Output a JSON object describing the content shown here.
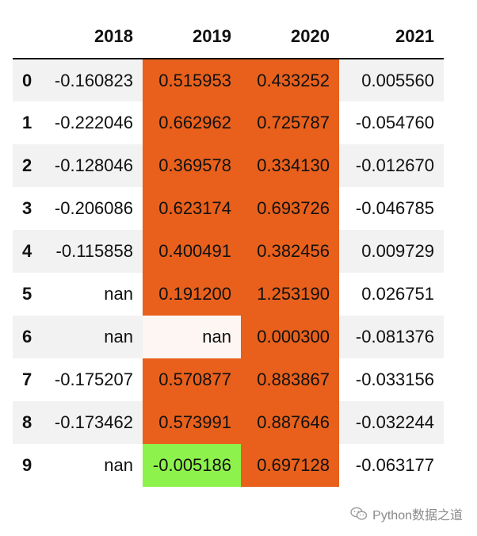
{
  "table": {
    "columns": [
      "",
      "2018",
      "2019",
      "2020",
      "2021"
    ],
    "rows": [
      {
        "index": "0",
        "cells": [
          "-0.160823",
          "0.515953",
          "0.433252",
          "0.005560"
        ],
        "highlight": [
          "",
          "orange",
          "orange",
          ""
        ]
      },
      {
        "index": "1",
        "cells": [
          "-0.222046",
          "0.662962",
          "0.725787",
          "-0.054760"
        ],
        "highlight": [
          "",
          "orange",
          "orange",
          ""
        ]
      },
      {
        "index": "2",
        "cells": [
          "-0.128046",
          "0.369578",
          "0.334130",
          "-0.012670"
        ],
        "highlight": [
          "",
          "orange",
          "orange",
          ""
        ]
      },
      {
        "index": "3",
        "cells": [
          "-0.206086",
          "0.623174",
          "0.693726",
          "-0.046785"
        ],
        "highlight": [
          "",
          "orange",
          "orange",
          ""
        ]
      },
      {
        "index": "4",
        "cells": [
          "-0.115858",
          "0.400491",
          "0.382456",
          "0.009729"
        ],
        "highlight": [
          "",
          "orange",
          "orange",
          ""
        ]
      },
      {
        "index": "5",
        "cells": [
          "nan",
          "0.191200",
          "1.253190",
          "0.026751"
        ],
        "highlight": [
          "",
          "orange",
          "orange",
          ""
        ]
      },
      {
        "index": "6",
        "cells": [
          "nan",
          "nan",
          "0.000300",
          "-0.081376"
        ],
        "highlight": [
          "",
          "white",
          "orange",
          ""
        ]
      },
      {
        "index": "7",
        "cells": [
          "-0.175207",
          "0.570877",
          "0.883867",
          "-0.033156"
        ],
        "highlight": [
          "",
          "orange",
          "orange",
          ""
        ]
      },
      {
        "index": "8",
        "cells": [
          "-0.173462",
          "0.573991",
          "0.887646",
          "-0.032244"
        ],
        "highlight": [
          "",
          "orange",
          "orange",
          ""
        ]
      },
      {
        "index": "9",
        "cells": [
          "nan",
          "-0.005186",
          "0.697128",
          "-0.063177"
        ],
        "highlight": [
          "",
          "green",
          "orange",
          ""
        ]
      }
    ]
  },
  "colors": {
    "orange": "#e8601c",
    "green": "#8ef24c",
    "near_white": "#fdf6f2",
    "stripe": "#f2f2f2"
  },
  "watermark": {
    "icon": "wechat-icon",
    "text": "Python数据之道"
  }
}
